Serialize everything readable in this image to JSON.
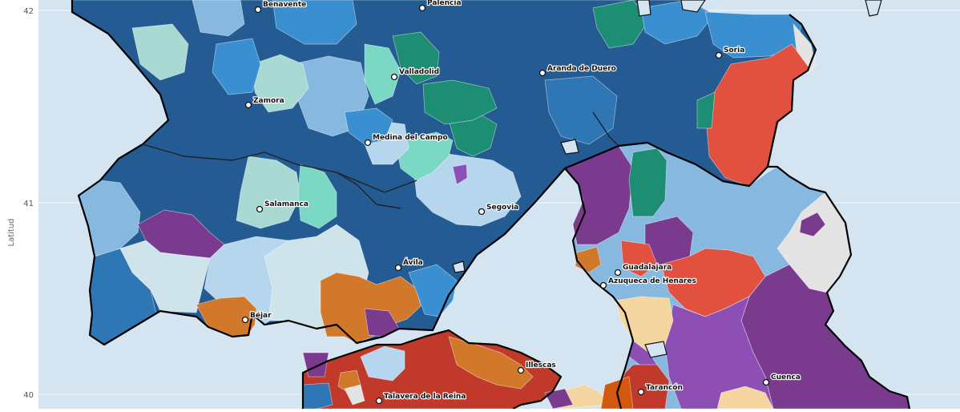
{
  "map": {
    "ylabel": "Latitud",
    "lat_ticks": [
      "42",
      "41",
      "40"
    ],
    "colors": {
      "ocean": "#d4e4f1",
      "dark_blue": "#235b92",
      "mid_blue": "#2e76b4",
      "blue": "#3a8fd0",
      "light_blue": "#86b8e0",
      "pale_blue": "#b6d6ee",
      "teal": "#1d8d73",
      "mint": "#7bd8c4",
      "pale_mint": "#a9d9d3",
      "light_grey": "#e3e3e3",
      "red": "#e2503f",
      "dark_red": "#c0392b",
      "orange": "#d2782b",
      "dark_orange": "#d4570e",
      "purple": "#7a3b8e",
      "light_purple": "#8e4fb5",
      "peach": "#f5d6a0"
    },
    "cities": [
      {
        "name": "Benavente"
      },
      {
        "name": "Palencia"
      },
      {
        "name": "Soria"
      },
      {
        "name": "Valladolid"
      },
      {
        "name": "Aranda de Duero"
      },
      {
        "name": "Zamora"
      },
      {
        "name": "Medina del Campo"
      },
      {
        "name": "Salamanca"
      },
      {
        "name": "Segovia"
      },
      {
        "name": "Ávila"
      },
      {
        "name": "Guadalajara"
      },
      {
        "name": "Azuqueca de Henares"
      },
      {
        "name": "Béjar"
      },
      {
        "name": "Illescas"
      },
      {
        "name": "Cuenca"
      },
      {
        "name": "Tarancón"
      },
      {
        "name": "Talavera de la Reina"
      }
    ]
  }
}
